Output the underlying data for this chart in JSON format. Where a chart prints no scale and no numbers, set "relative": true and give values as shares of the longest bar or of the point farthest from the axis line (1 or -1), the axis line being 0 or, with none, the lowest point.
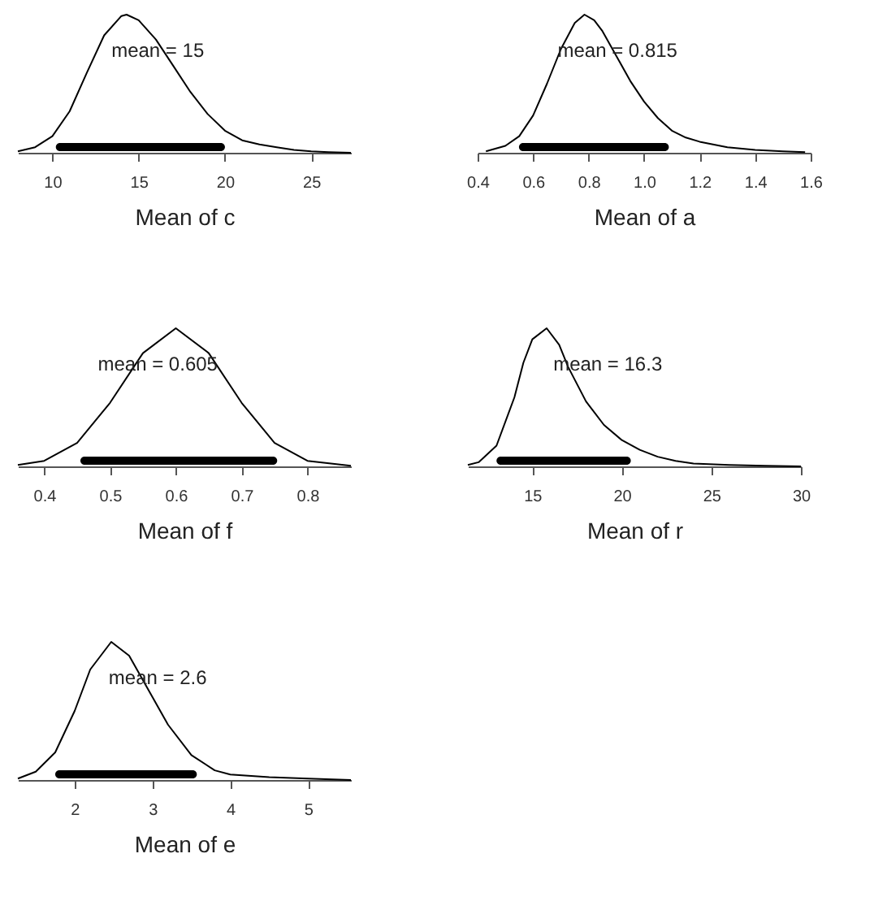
{
  "chart_data": [
    {
      "type": "line",
      "relative": true,
      "xlabel": "Mean of c",
      "xlim": [
        8.0,
        27.3
      ],
      "xticks": [
        10,
        15,
        20,
        25
      ],
      "annotations": [
        "mean = 15"
      ],
      "bands": [
        {
          "axis": "x",
          "from": 10.2,
          "to": 20,
          "color": "#000000"
        }
      ],
      "series": [
        {
          "color": "#000000",
          "x": [
            8.0,
            9,
            10,
            11,
            12,
            13,
            14,
            14.3,
            15,
            16,
            17,
            18,
            19,
            20,
            21,
            22,
            23,
            24,
            25,
            26,
            27.3
          ],
          "values": [
            0.01,
            0.04,
            0.12,
            0.3,
            0.58,
            0.85,
            0.99,
            1,
            0.96,
            0.82,
            0.63,
            0.44,
            0.28,
            0.16,
            0.09,
            0.06,
            0.04,
            0.02,
            0.01,
            0.005,
            0
          ]
        }
      ]
    },
    {
      "type": "line",
      "relative": true,
      "xlabel": "Mean of a",
      "xlim": [
        0.4,
        1.6
      ],
      "xticks": [
        0.4,
        0.6,
        0.8,
        {
          "value": 1,
          "label": "1.0"
        },
        1.2,
        1.4,
        1.6
      ],
      "annotations": [
        "mean = 0.815"
      ],
      "bands": [
        {
          "axis": "x",
          "from": 0.549,
          "to": 1.089,
          "color": "#000000"
        }
      ],
      "series": [
        {
          "color": "#000000",
          "x": [
            0.43,
            0.5,
            0.55,
            0.6,
            0.65,
            0.7,
            0.75,
            0.785,
            0.82,
            0.85,
            0.9,
            0.95,
            1.0,
            1.05,
            1.1,
            1.15,
            1.2,
            1.3,
            1.4,
            1.5,
            1.58
          ],
          "values": [
            0.01,
            0.05,
            0.12,
            0.27,
            0.5,
            0.75,
            0.94,
            1,
            0.96,
            0.88,
            0.7,
            0.52,
            0.37,
            0.25,
            0.16,
            0.11,
            0.08,
            0.04,
            0.02,
            0.01,
            0.005
          ]
        }
      ]
    },
    {
      "type": "line",
      "relative": true,
      "xlabel": "Mean of f",
      "xlim": [
        0.36,
        0.866
      ],
      "xticks": [
        0.4,
        0.5,
        0.6,
        0.7,
        0.8
      ],
      "annotations": [
        "mean = 0.605"
      ],
      "bands": [
        {
          "axis": "x",
          "from": 0.455,
          "to": 0.754,
          "color": "#000000"
        }
      ],
      "series": [
        {
          "color": "#000000",
          "x": [
            0.36,
            0.4,
            0.45,
            0.5,
            0.55,
            0.6,
            0.65,
            0.7,
            0.75,
            0.8,
            0.866
          ],
          "values": [
            0.01,
            0.04,
            0.17,
            0.46,
            0.82,
            1,
            0.82,
            0.46,
            0.17,
            0.04,
            0.005
          ]
        }
      ]
    },
    {
      "type": "line",
      "relative": true,
      "xlabel": "Mean of r",
      "xlim": [
        11.4,
        30
      ],
      "xticks": [
        15,
        20,
        25,
        30
      ],
      "annotations": [
        "mean = 16.3"
      ],
      "bands": [
        {
          "axis": "x",
          "from": 13.0,
          "to": 20.5,
          "color": "#000000"
        }
      ],
      "series": [
        {
          "color": "#000000",
          "x": [
            11.4,
            12,
            13,
            14,
            14.5,
            15,
            15.8,
            16.5,
            17,
            18,
            19,
            20,
            21,
            22,
            23,
            24,
            26,
            28,
            30
          ],
          "values": [
            0.01,
            0.03,
            0.15,
            0.5,
            0.75,
            0.92,
            1,
            0.88,
            0.72,
            0.47,
            0.3,
            0.19,
            0.12,
            0.07,
            0.04,
            0.02,
            0.01,
            0.005,
            0
          ]
        }
      ]
    },
    {
      "type": "line",
      "relative": true,
      "xlabel": "Mean of e",
      "xlim": [
        1.27,
        5.55
      ],
      "xticks": [
        2,
        3,
        4,
        5
      ],
      "annotations": [
        "mean = 2.6"
      ],
      "bands": [
        {
          "axis": "x",
          "from": 1.75,
          "to": 3.57,
          "color": "#000000"
        }
      ],
      "series": [
        {
          "color": "#000000",
          "x": [
            1.27,
            1.5,
            1.75,
            2,
            2.2,
            2.47,
            2.7,
            3,
            3.2,
            3.5,
            3.8,
            4,
            4.5,
            5,
            5.55
          ],
          "values": [
            0.01,
            0.06,
            0.2,
            0.5,
            0.8,
            1,
            0.9,
            0.6,
            0.4,
            0.18,
            0.07,
            0.04,
            0.02,
            0.01,
            0
          ]
        }
      ]
    }
  ]
}
